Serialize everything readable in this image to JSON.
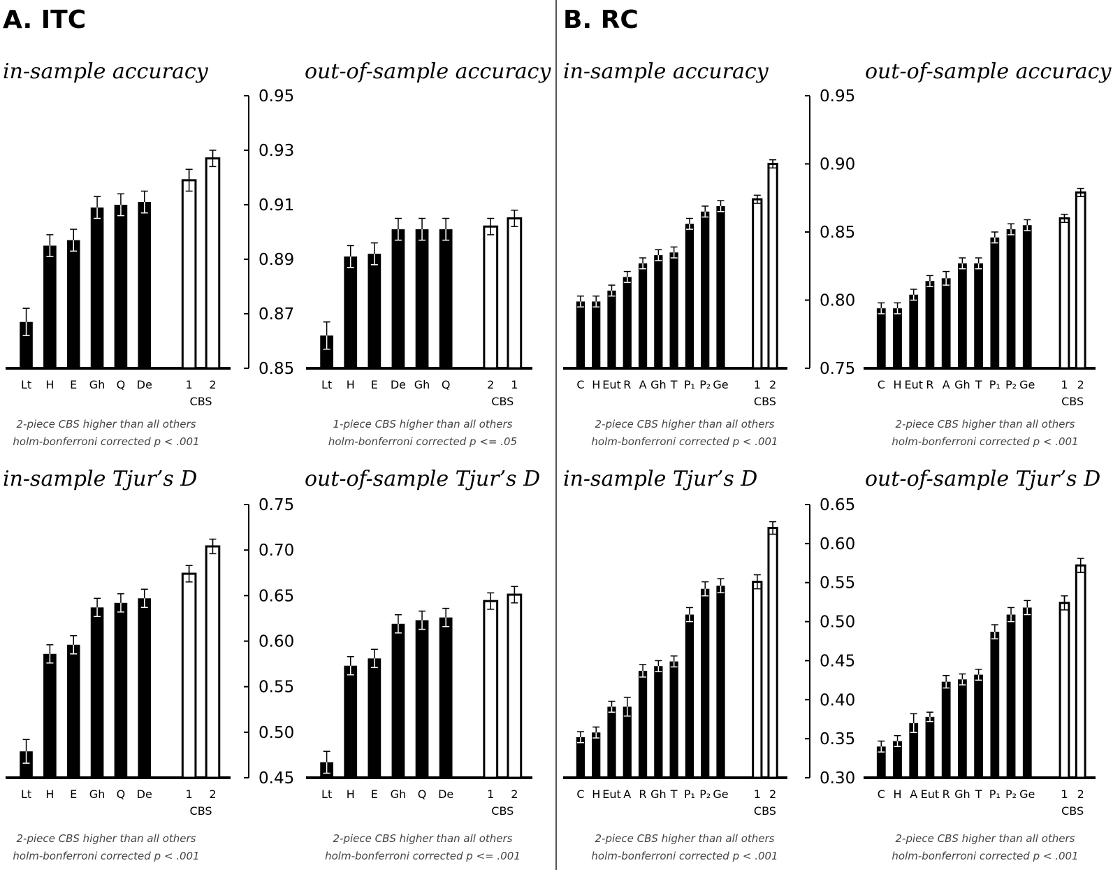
{
  "sections": {
    "itc": {
      "title": "A. ITC"
    },
    "rc": {
      "title": "B. RC"
    }
  },
  "chart_data": [
    {
      "id": "itc_in_acc",
      "type": "bar",
      "title": "in-sample accuracy",
      "categories": [
        "Lt",
        "H",
        "E",
        "Gh",
        "Q",
        "De",
        "1",
        "2"
      ],
      "values": [
        0.867,
        0.895,
        0.897,
        0.909,
        0.91,
        0.911,
        0.919,
        0.927
      ],
      "errors": [
        0.005,
        0.004,
        0.004,
        0.004,
        0.004,
        0.004,
        0.004,
        0.003
      ],
      "highlight": [
        false,
        false,
        false,
        false,
        false,
        false,
        true,
        true
      ],
      "group_label": "CBS",
      "ylim": [
        0.85,
        0.95
      ],
      "yticks": [
        "0.85",
        "0.87",
        "0.89",
        "0.91",
        "0.93",
        "0.95"
      ],
      "note": [
        "2-piece CBS higher than all others",
        "holm-bonferroni corrected p < .001"
      ]
    },
    {
      "id": "itc_out_acc",
      "type": "bar",
      "title": "out-of-sample accuracy",
      "categories": [
        "Lt",
        "H",
        "E",
        "De",
        "Gh",
        "Q",
        "2",
        "1"
      ],
      "values": [
        0.862,
        0.891,
        0.892,
        0.901,
        0.901,
        0.901,
        0.902,
        0.905
      ],
      "errors": [
        0.005,
        0.004,
        0.004,
        0.004,
        0.004,
        0.004,
        0.003,
        0.003
      ],
      "highlight": [
        false,
        false,
        false,
        false,
        false,
        false,
        true,
        true
      ],
      "group_label": "CBS",
      "ylim": [
        0.85,
        0.95
      ],
      "note": [
        "1-piece CBS higher than all others",
        "holm-bonferroni corrected p <= .05"
      ]
    },
    {
      "id": "rc_in_acc",
      "type": "bar",
      "title": "in-sample accuracy",
      "categories": [
        "C",
        "H",
        "Eut",
        "R",
        "A",
        "Gh",
        "T",
        "P₁",
        "P₂",
        "Ge",
        "1",
        "2"
      ],
      "values": [
        0.799,
        0.799,
        0.807,
        0.817,
        0.827,
        0.833,
        0.835,
        0.856,
        0.865,
        0.869,
        0.874,
        0.9
      ],
      "errors": [
        0.004,
        0.004,
        0.004,
        0.004,
        0.004,
        0.004,
        0.004,
        0.004,
        0.004,
        0.004,
        0.003,
        0.003
      ],
      "highlight": [
        false,
        false,
        false,
        false,
        false,
        false,
        false,
        false,
        false,
        false,
        true,
        true
      ],
      "group_label": "CBS",
      "ylim": [
        0.75,
        0.95
      ],
      "yticks": [
        "0.75",
        "0.80",
        "0.85",
        "0.90",
        "0.95"
      ],
      "note": [
        "2-piece CBS higher than all others",
        "holm-bonferroni corrected p < .001"
      ]
    },
    {
      "id": "rc_out_acc",
      "type": "bar",
      "title": "out-of-sample accuracy",
      "categories": [
        "C",
        "H",
        "Eut",
        "R",
        "A",
        "Gh",
        "T",
        "P₁",
        "P₂",
        "Ge",
        "1",
        "2"
      ],
      "values": [
        0.794,
        0.794,
        0.804,
        0.814,
        0.816,
        0.827,
        0.827,
        0.846,
        0.852,
        0.855,
        0.86,
        0.879
      ],
      "errors": [
        0.004,
        0.004,
        0.004,
        0.004,
        0.005,
        0.004,
        0.004,
        0.004,
        0.004,
        0.004,
        0.003,
        0.003
      ],
      "highlight": [
        false,
        false,
        false,
        false,
        false,
        false,
        false,
        false,
        false,
        false,
        true,
        true
      ],
      "group_label": "CBS",
      "ylim": [
        0.75,
        0.95
      ],
      "note": [
        "2-piece CBS higher than all others",
        "holm-bonferroni corrected p < .001"
      ]
    },
    {
      "id": "itc_in_d",
      "type": "bar",
      "title": "in-sample Tjur’s D",
      "categories": [
        "Lt",
        "H",
        "E",
        "Gh",
        "Q",
        "De",
        "1",
        "2"
      ],
      "values": [
        0.479,
        0.586,
        0.596,
        0.637,
        0.642,
        0.647,
        0.674,
        0.704
      ],
      "errors": [
        0.013,
        0.01,
        0.01,
        0.01,
        0.01,
        0.01,
        0.009,
        0.008
      ],
      "highlight": [
        false,
        false,
        false,
        false,
        false,
        false,
        true,
        true
      ],
      "group_label": "CBS",
      "ylim": [
        0.45,
        0.75
      ],
      "yticks": [
        "0.45",
        "0.50",
        "0.55",
        "0.60",
        "0.65",
        "0.70",
        "0.75"
      ],
      "note": [
        "2-piece CBS higher than all others",
        "holm-bonferroni corrected p < .001"
      ]
    },
    {
      "id": "itc_out_d",
      "type": "bar",
      "title": "out-of-sample Tjur’s D",
      "categories": [
        "Lt",
        "H",
        "E",
        "Gh",
        "Q",
        "De",
        "1",
        "2"
      ],
      "values": [
        0.467,
        0.573,
        0.581,
        0.619,
        0.623,
        0.626,
        0.644,
        0.651
      ],
      "errors": [
        0.012,
        0.01,
        0.01,
        0.01,
        0.01,
        0.01,
        0.009,
        0.009
      ],
      "highlight": [
        false,
        false,
        false,
        false,
        false,
        false,
        true,
        true
      ],
      "group_label": "CBS",
      "ylim": [
        0.45,
        0.75
      ],
      "note": [
        "2-piece CBS higher than all others",
        "holm-bonferroni corrected p <= .001"
      ]
    },
    {
      "id": "rc_in_d",
      "type": "bar",
      "title": "in-sample Tjur’s D",
      "categories": [
        "C",
        "H",
        "Eut",
        "A",
        "R",
        "Gh",
        "T",
        "P₁",
        "P₂",
        "Ge",
        "1",
        "2"
      ],
      "values": [
        0.352,
        0.358,
        0.391,
        0.391,
        0.437,
        0.443,
        0.449,
        0.509,
        0.542,
        0.546,
        0.551,
        0.62
      ],
      "errors": [
        0.007,
        0.007,
        0.007,
        0.012,
        0.008,
        0.007,
        0.007,
        0.009,
        0.009,
        0.009,
        0.009,
        0.008
      ],
      "highlight": [
        false,
        false,
        false,
        false,
        false,
        false,
        false,
        false,
        false,
        false,
        true,
        true
      ],
      "group_label": "CBS",
      "ylim": [
        0.3,
        0.65
      ],
      "yticks": [
        "0.30",
        "0.35",
        "0.40",
        "0.45",
        "0.50",
        "0.55",
        "0.60",
        "0.65"
      ],
      "note": [
        "2-piece CBS higher than all others",
        "holm-bonferroni corrected p < .001"
      ]
    },
    {
      "id": "rc_out_d",
      "type": "bar",
      "title": "out-of-sample Tjur’s D",
      "categories": [
        "C",
        "H",
        "A",
        "Eut",
        "R",
        "Gh",
        "T",
        "P₁",
        "P₂",
        "Ge",
        "1",
        "2"
      ],
      "values": [
        0.34,
        0.347,
        0.37,
        0.378,
        0.423,
        0.426,
        0.432,
        0.487,
        0.509,
        0.518,
        0.524,
        0.572
      ],
      "errors": [
        0.007,
        0.007,
        0.012,
        0.006,
        0.008,
        0.007,
        0.007,
        0.009,
        0.009,
        0.009,
        0.009,
        0.009
      ],
      "highlight": [
        false,
        false,
        false,
        false,
        false,
        false,
        false,
        false,
        false,
        false,
        true,
        true
      ],
      "group_label": "CBS",
      "ylim": [
        0.3,
        0.65
      ],
      "note": [
        "2-piece CBS higher than all others",
        "holm-bonferroni corrected p < .001"
      ]
    }
  ]
}
